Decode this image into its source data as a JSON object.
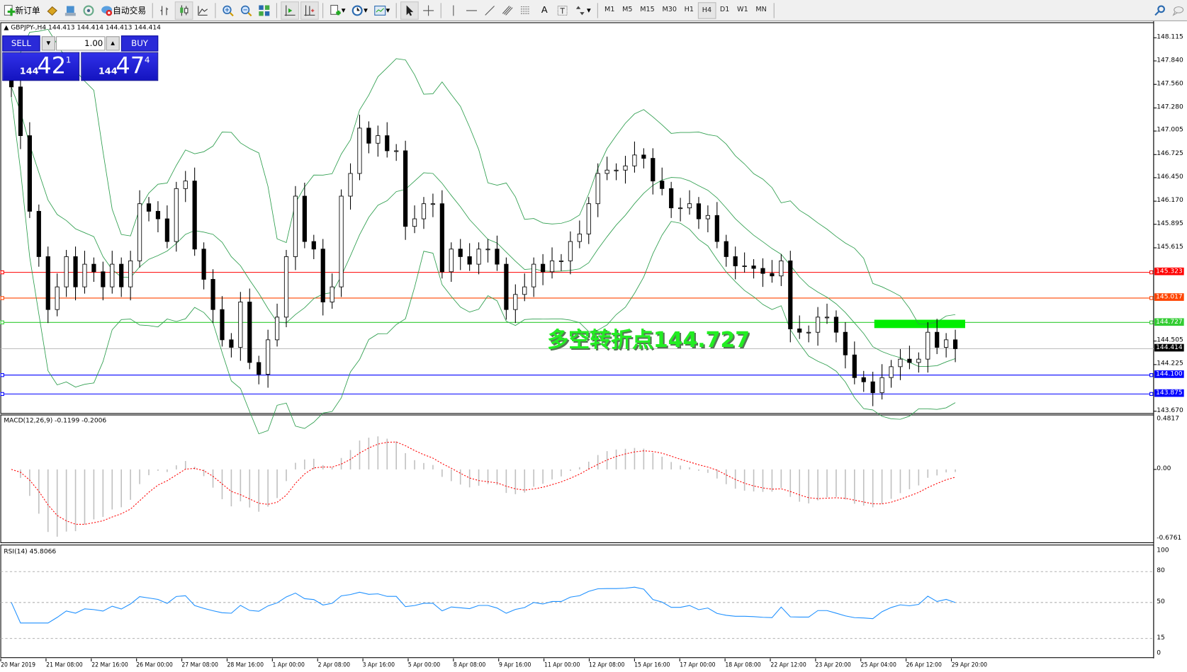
{
  "toolbar": {
    "new_order": "新订单",
    "auto_trading": "自动交易",
    "timeframes": [
      "M1",
      "M5",
      "M15",
      "M30",
      "H1",
      "H4",
      "D1",
      "W1",
      "MN"
    ],
    "active_timeframe": "H4"
  },
  "chart": {
    "header": "GBPJPY-,H4  144.413 144.414 144.413 144.414",
    "symbol": "GBPJPY-",
    "timeframe": "H4"
  },
  "trade_panel": {
    "sell_label": "SELL",
    "buy_label": "BUY",
    "lot": "1.00",
    "sell_price": {
      "prefix": "144",
      "big": "42",
      "sup": "1"
    },
    "buy_price": {
      "prefix": "144",
      "big": "47",
      "sup": "4"
    }
  },
  "annotation": {
    "text": "多空转折点144.727",
    "color": "#22ee22"
  },
  "price_axis": {
    "ticks": [
      "148.115",
      "147.840",
      "147.560",
      "147.280",
      "147.005",
      "146.725",
      "146.450",
      "146.170",
      "145.895",
      "145.615",
      "144.505",
      "144.225",
      "143.670"
    ],
    "range": [
      143.67,
      148.115
    ]
  },
  "levels": [
    {
      "price": "145.323",
      "color": "#ff0000"
    },
    {
      "price": "145.017",
      "color": "#ff4400"
    },
    {
      "price": "144.727",
      "color": "#33cc33"
    },
    {
      "price": "144.414",
      "color": "#000000",
      "line": "#c0c0c0"
    },
    {
      "price": "144.100",
      "color": "#0000ff"
    },
    {
      "price": "143.875",
      "color": "#0000ff"
    }
  ],
  "candles_close": [
    147.53,
    146.95,
    146.05,
    145.51,
    144.88,
    145.15,
    145.51,
    145.15,
    145.42,
    145.33,
    145.15,
    145.42,
    145.15,
    145.46,
    146.14,
    146.05,
    145.96,
    145.69,
    146.32,
    146.41,
    145.6,
    145.24,
    144.88,
    144.52,
    144.43,
    144.97,
    144.25,
    144.11,
    144.52,
    144.79,
    145.51,
    146.23,
    145.69,
    145.6,
    144.97,
    145.15,
    146.23,
    146.5,
    147.04,
    146.86,
    146.95,
    146.77,
    146.77,
    145.87,
    145.96,
    146.14,
    146.14,
    145.33,
    145.6,
    145.51,
    145.42,
    145.6,
    145.6,
    145.42,
    144.88,
    145.06,
    145.15,
    145.42,
    145.33,
    145.46,
    145.46,
    145.69,
    145.78,
    146.14,
    146.5,
    146.54,
    146.54,
    146.59,
    146.72,
    146.68,
    146.41,
    146.32,
    146.09,
    146.09,
    146.14,
    145.96,
    146.0,
    145.69,
    145.51,
    145.4,
    145.4,
    145.37,
    145.31,
    145.28,
    145.46,
    144.65,
    144.61,
    144.61,
    144.79,
    144.79,
    144.61,
    144.34,
    144.07,
    144.02,
    143.89,
    144.07,
    144.2,
    144.29,
    144.25,
    144.29,
    144.61,
    144.43,
    144.52,
    144.414
  ],
  "macd": {
    "label": "MACD(12,26,9) -0.1199 -0.2006",
    "ticks": [
      "0.4817",
      "0.00",
      "-0.6761"
    ],
    "range": [
      -0.6761,
      0.4817
    ],
    "histogram_color": "#c0c0c0",
    "signal_color": "#ff0000"
  },
  "rsi": {
    "label": "RSI(14) 45.8066",
    "ticks": [
      "100",
      "80",
      "50",
      "15",
      "0"
    ],
    "levels": [
      80,
      50,
      15
    ],
    "color": "#1e90ff"
  },
  "bands_color": "#2e9e4e",
  "time_axis": [
    "20 Mar 2019",
    "21 Mar 08:00",
    "22 Mar 16:00",
    "26 Mar 00:00",
    "27 Mar 08:00",
    "28 Mar 16:00",
    "1 Apr 00:00",
    "2 Apr 08:00",
    "3 Apr 16:00",
    "5 Apr 00:00",
    "8 Apr 08:00",
    "9 Apr 16:00",
    "11 Apr 00:00",
    "12 Apr 08:00",
    "15 Apr 16:00",
    "17 Apr 00:00",
    "18 Apr 08:00",
    "22 Apr 12:00",
    "23 Apr 20:00",
    "25 Apr 04:00",
    "26 Apr 12:00",
    "29 Apr 20:00"
  ]
}
